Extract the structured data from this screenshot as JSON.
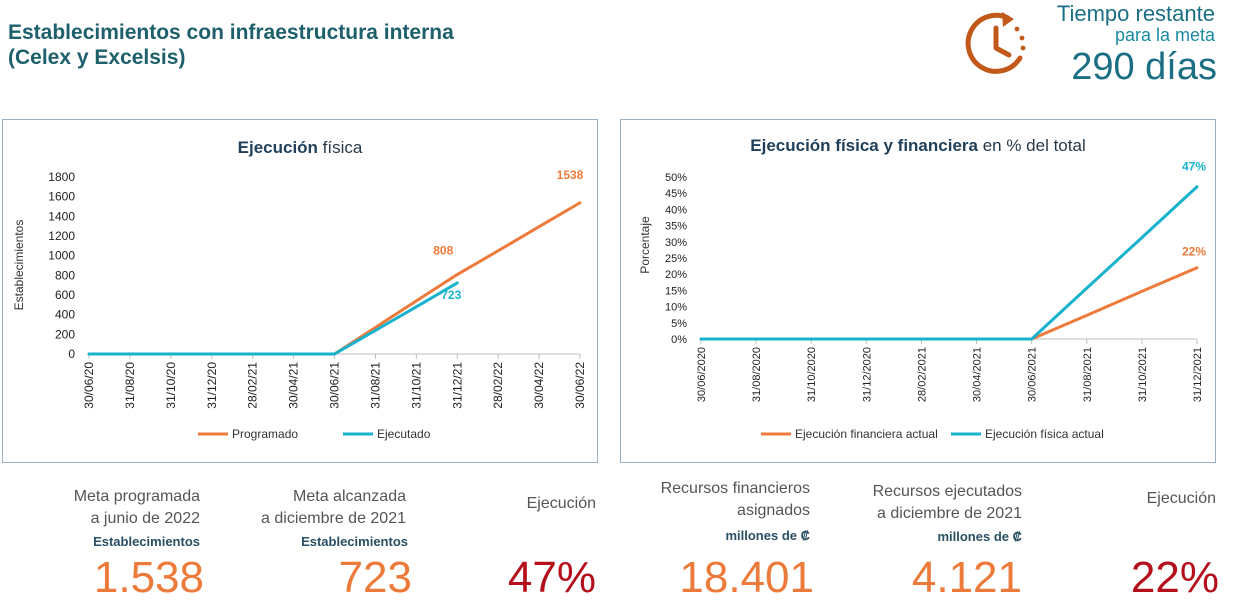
{
  "header": {
    "title_line1": "Establecimientos con infraestructura interna",
    "title_line2": "(Celex y Excelsis)"
  },
  "countdown": {
    "icon": "clock-arrow-icon",
    "label_line1": "Tiempo restante",
    "label_line2": "para la meta",
    "days": "290 días"
  },
  "colors": {
    "orange": "#ec7a3a",
    "teal": "#17b2cc",
    "red": "#b3101b",
    "title": "#1d5f6b"
  },
  "chart_data": [
    {
      "type": "line",
      "title_bold": "Ejecución",
      "title_rest": " física",
      "ylabel": "Establecimientos",
      "xlabel": "",
      "ylim": [
        0,
        1800
      ],
      "yticks": [
        "0",
        "200",
        "400",
        "600",
        "800",
        "1000",
        "1200",
        "1400",
        "1600",
        "1800"
      ],
      "categories": [
        "30/06/20",
        "31/08/20",
        "31/10/20",
        "31/12/20",
        "28/02/21",
        "30/04/21",
        "30/06/21",
        "31/08/21",
        "31/10/21",
        "31/12/21",
        "28/02/22",
        "30/04/22",
        "30/06/22"
      ],
      "series": [
        {
          "name": "Programado",
          "color": "#ec7a3a",
          "values": [
            0,
            0,
            0,
            0,
            0,
            0,
            0,
            270,
            540,
            808,
            1050,
            1295,
            1538
          ]
        },
        {
          "name": "Ejecutado",
          "color": "#17b2cc",
          "values": [
            0,
            0,
            0,
            0,
            0,
            0,
            0,
            240,
            480,
            723,
            null,
            null,
            null
          ]
        }
      ],
      "data_labels": [
        {
          "series": 0,
          "index": 9,
          "text": "808"
        },
        {
          "series": 0,
          "index": 12,
          "text": "1538"
        },
        {
          "series": 1,
          "index": 9,
          "text": "723"
        }
      ],
      "legend": "bottom"
    },
    {
      "type": "line",
      "title_bold": "Ejecución física y financiera",
      "title_rest": " en % del total",
      "ylabel": "Porcentaje",
      "xlabel": "",
      "ylim": [
        0,
        50
      ],
      "yticks": [
        "0%",
        "5%",
        "10%",
        "15%",
        "20%",
        "25%",
        "30%",
        "35%",
        "40%",
        "45%",
        "50%"
      ],
      "categories": [
        "30/06/2020",
        "31/08/2020",
        "31/10/2020",
        "31/12/2020",
        "28/02/2021",
        "30/04/2021",
        "30/06/2021",
        "31/08/2021",
        "31/10/2021",
        "31/12/2021"
      ],
      "series": [
        {
          "name": "Ejecución financiera actual",
          "color": "#ec7a3a",
          "values": [
            0,
            0,
            0,
            0,
            0,
            0,
            0,
            7.3,
            14.7,
            22
          ]
        },
        {
          "name": "Ejecución física actual",
          "color": "#17b2cc",
          "values": [
            0,
            0,
            0,
            0,
            0,
            0,
            0,
            15.7,
            31.3,
            47
          ]
        }
      ],
      "data_labels": [
        {
          "series": 1,
          "index": 9,
          "text": "47%"
        },
        {
          "series": 0,
          "index": 9,
          "text": "22%"
        }
      ],
      "legend": "bottom"
    }
  ],
  "kpis": {
    "meta_programada": {
      "line1": "Meta programada",
      "line2": "a junio de 2022",
      "unit": "Establecimientos",
      "value": "1.538"
    },
    "meta_alcanzada": {
      "line1": "Meta alcanzada",
      "line2": "a diciembre de 2021",
      "unit": "Establecimientos",
      "value": "723"
    },
    "ejecucion_fisica": {
      "line1": "Ejecución",
      "value": "47%"
    },
    "recursos_asignados": {
      "line1": "Recursos financieros",
      "line2": "asignados",
      "unit": "millones de ₡",
      "value": "18.401"
    },
    "recursos_ejecutados": {
      "line1": "Recursos ejecutados",
      "line2": "a diciembre de 2021",
      "unit": "millones de ₡",
      "value": "4.121"
    },
    "ejecucion_financiera": {
      "line1": "Ejecución",
      "value": "22%"
    }
  }
}
